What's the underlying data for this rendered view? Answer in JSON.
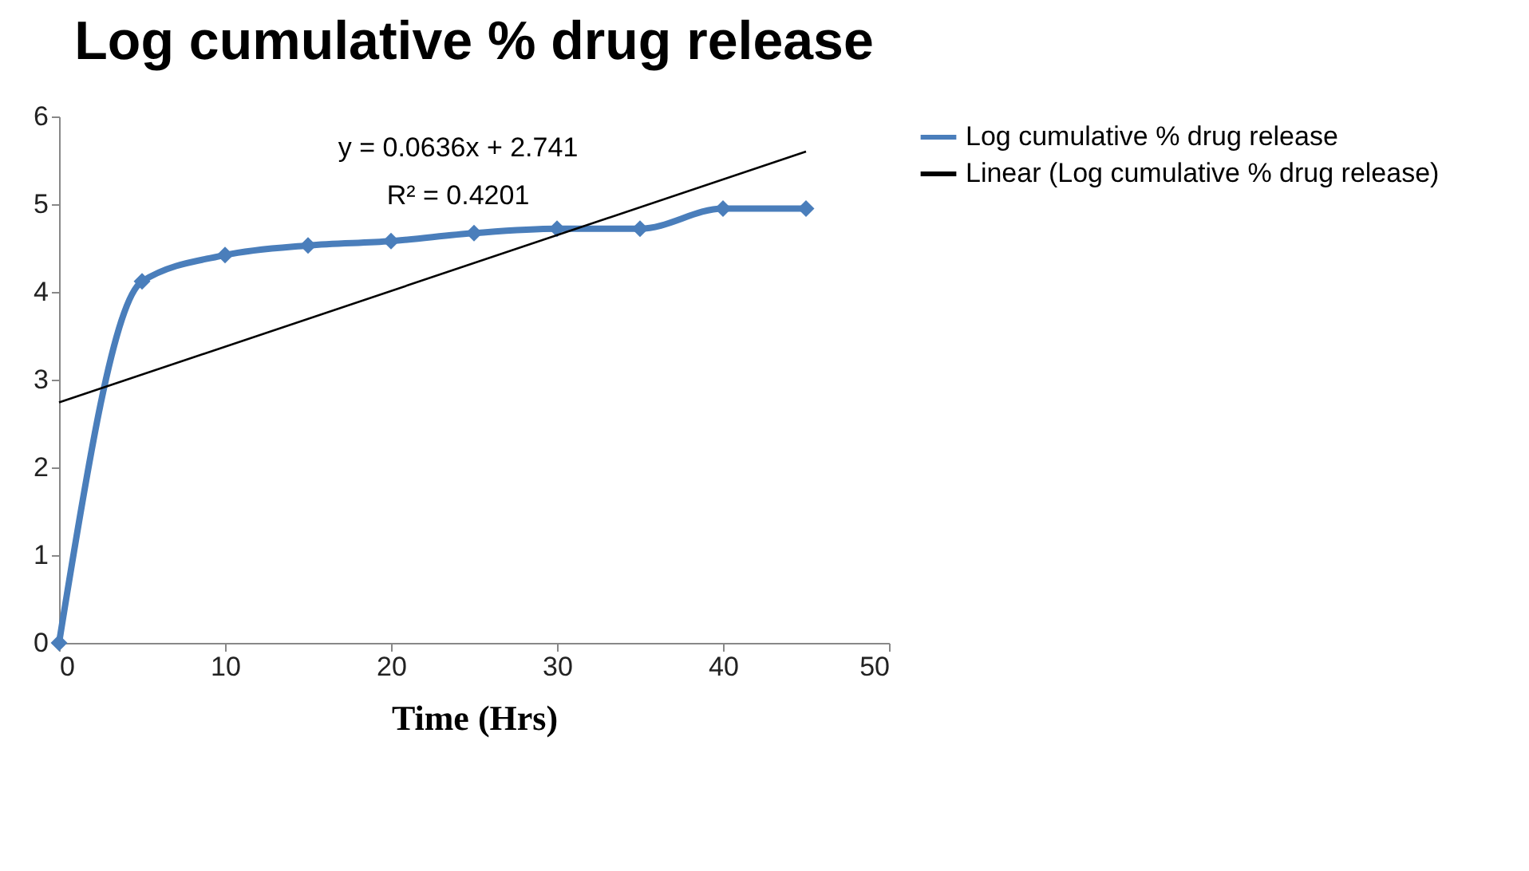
{
  "chart_data": {
    "type": "line",
    "title": "Log cumulative % drug release",
    "xlabel": "Time (Hrs)",
    "x": [
      0,
      5,
      10,
      15,
      20,
      25,
      30,
      35,
      40,
      45
    ],
    "series": [
      {
        "name": "Log cumulative % drug release",
        "color": "#4a7ebb",
        "marker": "diamond",
        "values": [
          0,
          4.12,
          4.42,
          4.53,
          4.58,
          4.67,
          4.72,
          4.72,
          4.95,
          4.95
        ]
      },
      {
        "name": "Linear (Log cumulative % drug release)",
        "color": "#000000",
        "type": "line",
        "marker": "none",
        "x": [
          0,
          45
        ],
        "values": [
          2.74,
          5.6
        ]
      }
    ],
    "xlim": [
      0,
      50
    ],
    "xticks": [
      0,
      10,
      20,
      30,
      40,
      50
    ],
    "ylim": [
      0,
      6
    ],
    "yticks": [
      0,
      1,
      2,
      3,
      4,
      5,
      6
    ],
    "grid": false,
    "legend": "right",
    "annotations": [
      "y = 0.0636x + 2.741",
      "R² = 0.4201"
    ]
  }
}
